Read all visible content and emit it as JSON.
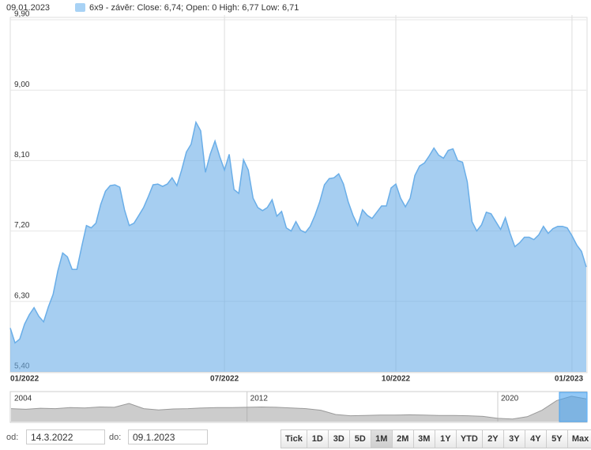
{
  "header": {
    "date": "09.01.2023"
  },
  "chart_data": [
    {
      "type": "area",
      "categories": [
        "01/2022",
        null,
        null,
        null,
        null,
        null,
        null,
        null,
        null,
        null,
        null,
        null,
        null,
        null,
        null,
        null,
        null,
        null,
        null,
        null,
        null,
        null,
        null,
        null,
        null,
        null,
        null,
        null,
        null,
        null,
        null,
        null,
        null,
        null,
        null,
        null,
        null,
        null,
        null,
        null,
        null,
        null,
        null,
        null,
        null,
        "07/2022",
        null,
        null,
        null,
        null,
        null,
        null,
        null,
        null,
        null,
        null,
        null,
        null,
        null,
        null,
        null,
        null,
        null,
        null,
        null,
        null,
        null,
        null,
        null,
        null,
        null,
        null,
        null,
        null,
        null,
        null,
        null,
        null,
        null,
        null,
        null,
        "10/2022",
        null,
        null,
        null,
        null,
        null,
        null,
        null,
        null,
        null,
        null,
        null,
        null,
        null,
        null,
        null,
        null,
        null,
        null,
        null,
        null,
        null,
        null,
        null,
        null,
        null,
        null,
        null,
        null,
        null,
        null,
        null,
        null,
        null,
        null,
        null,
        null,
        "01/2023",
        null,
        null,
        null
      ],
      "series": [
        {
          "name": "6x9 - závěr: Close: 6,74; Open: 0 High: 6,77 Low: 6,71",
          "color": "#6aaee8",
          "values": [
            5.96,
            5.77,
            5.82,
            6.01,
            6.13,
            6.22,
            6.11,
            6.04,
            6.23,
            6.39,
            6.69,
            6.92,
            6.87,
            6.71,
            6.71,
            7.0,
            7.27,
            7.24,
            7.3,
            7.54,
            7.71,
            7.78,
            7.79,
            7.76,
            7.47,
            7.27,
            7.3,
            7.4,
            7.5,
            7.64,
            7.79,
            7.8,
            7.77,
            7.8,
            7.88,
            7.78,
            7.98,
            8.21,
            8.31,
            8.59,
            8.48,
            7.95,
            8.18,
            8.35,
            8.15,
            7.98,
            8.18,
            7.73,
            7.68,
            8.11,
            7.98,
            7.62,
            7.5,
            7.46,
            7.5,
            7.6,
            7.39,
            7.45,
            7.24,
            7.2,
            7.32,
            7.21,
            7.18,
            7.26,
            7.4,
            7.57,
            7.79,
            7.87,
            7.88,
            7.93,
            7.8,
            7.57,
            7.4,
            7.27,
            7.47,
            7.4,
            7.36,
            7.44,
            7.52,
            7.52,
            7.75,
            7.8,
            7.62,
            7.51,
            7.62,
            7.91,
            8.03,
            8.07,
            8.16,
            8.26,
            8.17,
            8.13,
            8.23,
            8.25,
            8.1,
            8.08,
            7.83,
            7.32,
            7.2,
            7.28,
            7.44,
            7.42,
            7.32,
            7.22,
            7.37,
            7.17,
            7.0,
            7.05,
            7.12,
            7.12,
            7.09,
            7.15,
            7.26,
            7.17,
            7.23,
            7.26,
            7.26,
            7.24,
            7.14,
            7.02,
            6.94,
            6.74
          ]
        }
      ],
      "ylim": [
        5.4,
        9.9
      ],
      "yticks": [
        {
          "value": 5.4,
          "label": "5,40"
        },
        {
          "value": 6.3,
          "label": "6,30"
        },
        {
          "value": 7.2,
          "label": "7,20"
        },
        {
          "value": 8.1,
          "label": "8,10"
        },
        {
          "value": 9.0,
          "label": "9,00"
        },
        {
          "value": 9.9,
          "label": "9,90"
        }
      ],
      "grid": true
    },
    {
      "type": "area",
      "categories": [
        "2004",
        null,
        null,
        null,
        null,
        null,
        null,
        null,
        null,
        null,
        null,
        null,
        null,
        null,
        null,
        null,
        "2012",
        null,
        null,
        null,
        null,
        null,
        null,
        null,
        null,
        null,
        null,
        null,
        null,
        null,
        null,
        null,
        null,
        "2020",
        null,
        null,
        null,
        null,
        null,
        null
      ],
      "series": [
        {
          "color": "#9a9a9a",
          "values": [
            4.0,
            3.8,
            4.1,
            4.0,
            4.3,
            4.2,
            4.5,
            4.4,
            5.6,
            4.0,
            3.6,
            3.9,
            4.0,
            4.2,
            4.3,
            4.3,
            4.4,
            4.5,
            4.4,
            4.2,
            4.0,
            3.5,
            2.2,
            1.8,
            1.9,
            2.0,
            2.0,
            2.1,
            2.0,
            1.9,
            1.9,
            1.8,
            1.6,
            1.0,
            0.8,
            1.5,
            3.5,
            6.5,
            7.8,
            7.0
          ]
        }
      ],
      "ylim": [
        0,
        9
      ]
    }
  ],
  "range": {
    "from_label": "od:",
    "from": "14.3.2022",
    "to_label": "do:",
    "to": "09.1.2023"
  },
  "buttons": [
    "Tick",
    "1D",
    "3D",
    "5D",
    "1M",
    "2M",
    "3M",
    "1Y",
    "YTD",
    "2Y",
    "3Y",
    "4Y",
    "5Y",
    "Max"
  ],
  "active_button": 4
}
